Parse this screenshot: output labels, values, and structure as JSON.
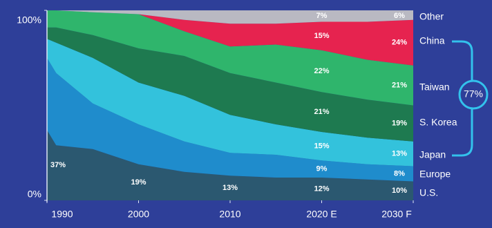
{
  "chart_data": {
    "type": "stacked-area",
    "x": [
      1990,
      1991,
      1995,
      2000,
      2005,
      2010,
      2015,
      2020,
      2025,
      2030
    ],
    "xlim": [
      1990,
      2030
    ],
    "xticks": [
      1990,
      2000,
      2010,
      {
        "value": 2020,
        "label": "2020 E"
      },
      {
        "value": 2030,
        "label": "2030 F"
      }
    ],
    "ylim": [
      0,
      100
    ],
    "yticks": [
      {
        "value": 0,
        "label": "0%"
      },
      {
        "value": 100,
        "label": "100%"
      }
    ],
    "series": [
      {
        "name": "U.S.",
        "color": "#2b5870",
        "values": [
          37,
          29,
          27,
          19,
          15,
          13,
          12,
          12,
          11,
          10
        ],
        "value_labels": [
          "37%",
          null,
          null,
          "19%",
          null,
          "13%",
          null,
          "12%",
          null,
          "10%"
        ]
      },
      {
        "name": "Europe",
        "color": "#1f8ccc",
        "values": [
          38,
          38,
          24,
          21,
          16,
          12,
          12,
          9,
          8,
          8
        ],
        "value_labels": [
          null,
          null,
          null,
          null,
          null,
          null,
          null,
          "9%",
          null,
          "8%"
        ]
      },
      {
        "name": "Japan",
        "color": "#33c2dc",
        "values": [
          10,
          16,
          24,
          22,
          24,
          20,
          16,
          15,
          14,
          13
        ],
        "value_labels": [
          null,
          null,
          null,
          null,
          null,
          null,
          null,
          "15%",
          null,
          "13%"
        ]
      },
      {
        "name": "S. Korea",
        "color": "#1e7a50",
        "values": [
          6,
          8,
          12,
          18,
          21,
          22,
          22,
          21,
          20,
          19
        ],
        "value_labels": [
          null,
          null,
          null,
          null,
          null,
          null,
          null,
          "21%",
          null,
          "19%"
        ]
      },
      {
        "name": "Taiwan",
        "color": "#2fb56c",
        "values": [
          9,
          9,
          12,
          18,
          13,
          14,
          20,
          22,
          21,
          21
        ],
        "value_labels": [
          null,
          null,
          null,
          null,
          null,
          null,
          null,
          "22%",
          null,
          "21%"
        ]
      },
      {
        "name": "China",
        "color": "#e6234f",
        "values": [
          0,
          0,
          0,
          0,
          6,
          12,
          11,
          15,
          20,
          24
        ],
        "value_labels": [
          null,
          null,
          null,
          null,
          null,
          null,
          null,
          "15%",
          null,
          "24%"
        ]
      },
      {
        "name": "Other",
        "color": "#b9b9c2",
        "values": [
          0,
          0,
          1,
          2,
          5,
          7,
          7,
          7,
          6,
          6
        ],
        "value_labels": [
          null,
          null,
          null,
          null,
          null,
          null,
          null,
          "7%",
          null,
          "6%"
        ]
      }
    ],
    "annotation": "77%"
  }
}
